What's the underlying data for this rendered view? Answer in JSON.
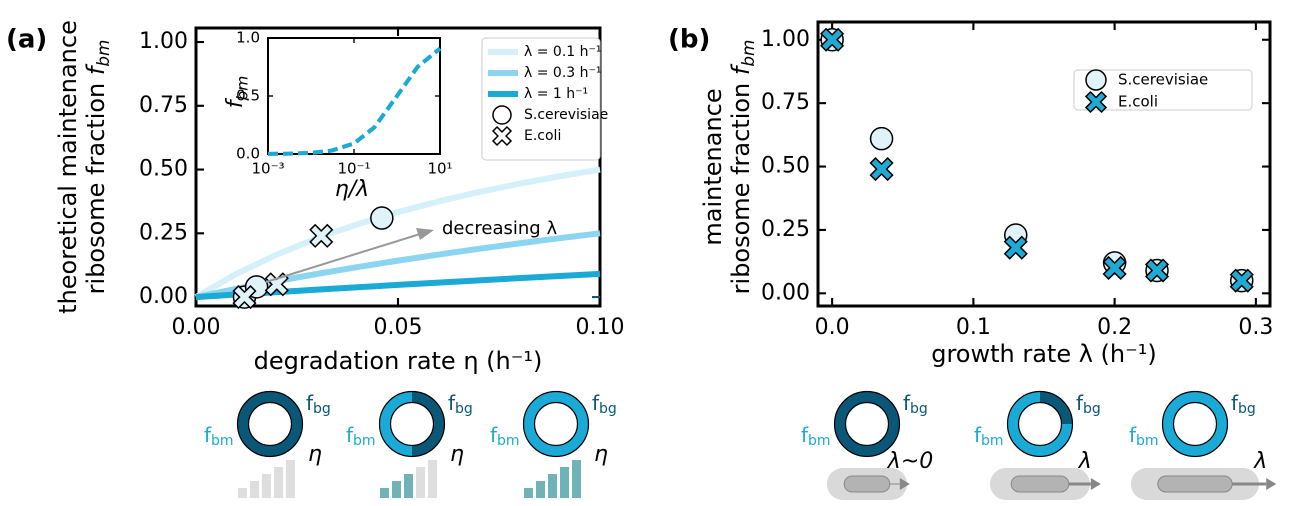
{
  "chart_data": [
    {
      "type": "line",
      "panel_label": "(a)",
      "xlabel": "degradation rate η (h⁻¹)",
      "ylabel": {
        "lines": [
          "theoretical maintenance",
          "ribosome fraction"
        ],
        "symbol": "f",
        "subscript": "bm"
      },
      "xlim": [
        0,
        0.1
      ],
      "ylim": [
        -0.035,
        1.055
      ],
      "xticks": [
        {
          "value": 0,
          "label": "0.00"
        },
        {
          "value": 0.05,
          "label": "0.05"
        },
        {
          "value": 0.1,
          "label": "0.10"
        }
      ],
      "yticks": [
        {
          "value": 0,
          "label": "0.00"
        },
        {
          "value": 0.25,
          "label": "0.25"
        },
        {
          "value": 0.5,
          "label": "0.50"
        },
        {
          "value": 0.75,
          "label": "0.75"
        },
        {
          "value": 1,
          "label": "1.00"
        }
      ],
      "x": [
        0,
        0.01,
        0.02,
        0.03,
        0.04,
        0.05,
        0.06,
        0.07,
        0.08,
        0.09,
        0.1
      ],
      "series": [
        {
          "name": "λ = 0.1 h⁻¹",
          "color": "#d4f0fa",
          "values": [
            0,
            0.0909,
            0.1667,
            0.2308,
            0.2857,
            0.3333,
            0.375,
            0.4118,
            0.4444,
            0.4737,
            0.5
          ]
        },
        {
          "name": "λ = 0.3 h⁻¹",
          "color": "#8bd5f0",
          "values": [
            0,
            0.0323,
            0.0625,
            0.0909,
            0.1176,
            0.1429,
            0.1667,
            0.1892,
            0.2105,
            0.2308,
            0.25
          ]
        },
        {
          "name": "λ = 1 h⁻¹",
          "color": "#1ba9d6",
          "values": [
            0,
            0.0099,
            0.0196,
            0.0291,
            0.0385,
            0.0476,
            0.0566,
            0.0654,
            0.0741,
            0.0826,
            0.0909
          ]
        }
      ],
      "scatter": [
        {
          "name": "S.cerevisiae",
          "marker": "circle",
          "color": "#dff3f8",
          "x": [
            0.012,
            0.015,
            0.046
          ],
          "y": [
            0.0,
            0.04,
            0.31
          ]
        },
        {
          "name": "E.coli",
          "marker": "cross",
          "color": "#dff3f8",
          "x": [
            0.012,
            0.02,
            0.031
          ],
          "y": [
            0.0,
            0.05,
            0.24
          ]
        }
      ],
      "annotation": "decreasing λ",
      "inset": {
        "type": "line",
        "xlog": true,
        "linestyle": "dashed",
        "xlabel": "η/λ",
        "ylabel": {
          "symbol": "f",
          "subscript": "bm"
        },
        "xlim": [
          0.001,
          10
        ],
        "ylim": [
          0,
          1
        ],
        "xticks": [
          {
            "value": 0.001,
            "label": "10⁻³"
          },
          {
            "value": 0.1,
            "label": "10⁻¹"
          },
          {
            "value": 10,
            "label": "10¹"
          }
        ],
        "yticks": [
          {
            "value": 0,
            "label": "0.0"
          },
          {
            "value": 0.5,
            "label": "0.5"
          },
          {
            "value": 1,
            "label": "1.0"
          }
        ],
        "x": [
          0.001,
          0.003,
          0.01,
          0.03,
          0.1,
          0.3,
          1,
          3,
          10
        ],
        "series": [
          {
            "color": "#d4f0fa",
            "values": [
              0.001,
              0.003,
              0.0099,
              0.0291,
              0.0909,
              0.2308,
              0.5,
              0.75,
              0.9091
            ]
          },
          {
            "color": "#8bd5f0",
            "values": [
              0.001,
              0.003,
              0.0099,
              0.0291,
              0.0909,
              0.2308,
              0.5,
              0.75,
              0.9091
            ]
          },
          {
            "color": "#1ba9d6",
            "values": [
              0.001,
              0.003,
              0.0099,
              0.0291,
              0.0909,
              0.2308,
              0.5,
              0.75,
              0.9091
            ]
          }
        ]
      }
    },
    {
      "type": "scatter",
      "panel_label": "(b)",
      "xlabel": "growth rate λ (h⁻¹)",
      "ylabel": {
        "lines": [
          "maintenance",
          "ribosome fraction"
        ],
        "symbol": "f",
        "subscript": "bm"
      },
      "xlim": [
        -0.01,
        0.31
      ],
      "ylim": [
        -0.05,
        1.07
      ],
      "xticks": [
        {
          "value": 0,
          "label": "0.0"
        },
        {
          "value": 0.1,
          "label": "0.1"
        },
        {
          "value": 0.2,
          "label": "0.2"
        },
        {
          "value": 0.3,
          "label": "0.3"
        }
      ],
      "yticks": [
        {
          "value": 0,
          "label": "0.00"
        },
        {
          "value": 0.25,
          "label": "0.25"
        },
        {
          "value": 0.5,
          "label": "0.50"
        },
        {
          "value": 0.75,
          "label": "0.75"
        },
        {
          "value": 1,
          "label": "1.00"
        }
      ],
      "scatter": [
        {
          "name": "S.cerevisiae",
          "marker": "circle",
          "color": "#dff3f8",
          "x": [
            0,
            0.035,
            0.13,
            0.2,
            0.23,
            0.29
          ],
          "y": [
            1.0,
            0.61,
            0.23,
            0.12,
            0.09,
            0.05
          ]
        },
        {
          "name": "E.coli",
          "marker": "cross",
          "color": "#1eaad5",
          "x": [
            0,
            0.035,
            0.13,
            0.2,
            0.23,
            0.29
          ],
          "y": [
            1.0,
            0.49,
            0.18,
            0.1,
            0.09,
            0.05
          ]
        }
      ]
    }
  ],
  "illustrations": {
    "a": [
      {
        "left": [
          "f",
          "bm"
        ],
        "right": [
          "f",
          "bg"
        ],
        "rate": "η"
      },
      {
        "left": [
          "f",
          "bm"
        ],
        "right": [
          "f",
          "bg"
        ],
        "rate": "η"
      },
      {
        "left": [
          "f",
          "bm"
        ],
        "right": [
          "f",
          "bg"
        ],
        "rate": "η"
      }
    ],
    "b": [
      {
        "left": [
          "f",
          "bm"
        ],
        "right": [
          "f",
          "bg"
        ],
        "rate": "λ~0"
      },
      {
        "left": [
          "f",
          "bm"
        ],
        "right": [
          "f",
          "bg"
        ],
        "rate": "λ"
      },
      {
        "left": [
          "f",
          "bm"
        ],
        "right": [
          "f",
          "bg"
        ],
        "rate": "λ"
      }
    ]
  }
}
